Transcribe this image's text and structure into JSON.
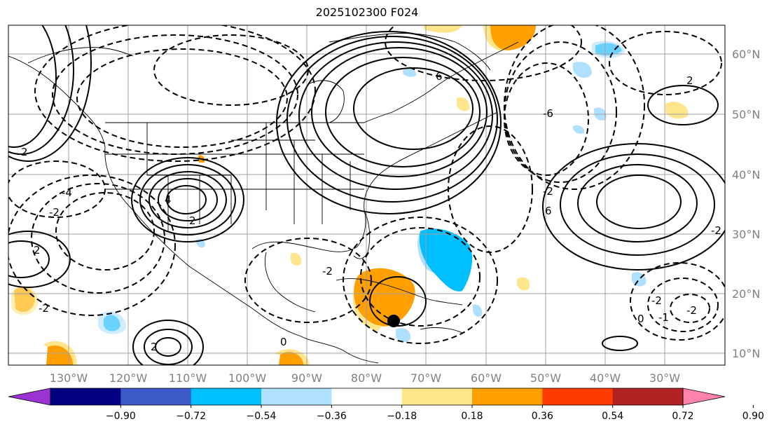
{
  "title": "2025102300 F024",
  "lat_labels": [
    "60°N",
    "50°N",
    "40°N",
    "30°N",
    "20°N",
    "10°N"
  ],
  "lon_labels": [
    "130°W",
    "120°W",
    "110°W",
    "100°W",
    "90°W",
    "80°W",
    "70°W",
    "60°W",
    "50°W",
    "40°W",
    "30°W"
  ],
  "colorbar": {
    "ticks": [
      "−0.90",
      "−0.72",
      "−0.54",
      "−0.36",
      "−0.18",
      "0.18",
      "0.36",
      "0.54",
      "0.72",
      "0.90"
    ],
    "colors": [
      "#9b32d2",
      "#000080",
      "#3c5ac8",
      "#00bfff",
      "#b0e0ff",
      "#ffffff",
      "#ffe68c",
      "#ffa000",
      "#ff3c00",
      "#b22222",
      "#ff82aa"
    ]
  },
  "contour_labels": [
    "6",
    "-6",
    "6",
    "4",
    "2",
    "2",
    "-2",
    "-4",
    "-2",
    "0",
    "-2",
    "2",
    "-2",
    "-2",
    "0",
    "-1",
    "-2",
    "2",
    "-2",
    "2"
  ],
  "marker": "storm-position-dot"
}
